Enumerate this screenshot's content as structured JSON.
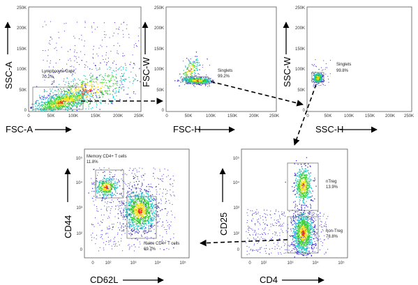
{
  "panels": [
    {
      "id": "p1",
      "x_label": "FSC-A",
      "y_label": "SSC-A",
      "x_ticks": [
        "0",
        "50K",
        "100K",
        "150K",
        "200K",
        "250K"
      ],
      "y_ticks": [
        "0",
        "50K",
        "100K",
        "150K",
        "200K",
        "250K"
      ],
      "gates": [
        {
          "name": "Lymphocyte Gate",
          "pct": "70.2%"
        }
      ]
    },
    {
      "id": "p2",
      "x_label": "FSC-H",
      "y_label": "FSC-W",
      "x_ticks": [
        "0",
        "50K",
        "100K",
        "150K",
        "200K",
        "250K"
      ],
      "y_ticks": [
        "0",
        "50K",
        "100K",
        "150K",
        "200K",
        "250K"
      ],
      "gates": [
        {
          "name": "Singlets",
          "pct": "99.2%"
        }
      ]
    },
    {
      "id": "p3",
      "x_label": "SSC-H",
      "y_label": "SSC-W",
      "x_ticks": [
        "0",
        "50K",
        "100K",
        "150K",
        "200K",
        "250K"
      ],
      "y_ticks": [
        "0",
        "50K",
        "100K",
        "150K",
        "200K",
        "250K"
      ],
      "gates": [
        {
          "name": "Singlets",
          "pct": "99.8%"
        }
      ]
    },
    {
      "id": "p4",
      "x_label": "CD62L",
      "y_label": "CD44",
      "x_ticks": [
        "0",
        "10²",
        "10³",
        "10⁴",
        "10⁵"
      ],
      "y_ticks": [
        "0",
        "10²",
        "10³",
        "10⁴",
        "10⁵"
      ],
      "gates": [
        {
          "name": "Memory CD4+ T cells",
          "pct": "11.8%"
        },
        {
          "name": "Naive CD4+ T cells",
          "pct": "69.1%"
        }
      ]
    },
    {
      "id": "p5",
      "x_label": "CD4",
      "y_label": "CD25",
      "x_ticks": [
        "0",
        "10²",
        "10³",
        "10⁴",
        "10⁵"
      ],
      "y_ticks": [
        "0",
        "10²",
        "10³",
        "10⁴",
        "10⁵"
      ],
      "gates": [
        {
          "name": "nTreg",
          "pct": "13.9%"
        },
        {
          "name": "non-Treg",
          "pct": "78.8%"
        }
      ]
    }
  ],
  "colors": {
    "dot_low": "#3b2fd1",
    "dot_mid": "#22c7c2",
    "dot_high_1": "#3fd13a",
    "dot_high_2": "#f2e21e",
    "dot_peak": "#ef3a18"
  }
}
